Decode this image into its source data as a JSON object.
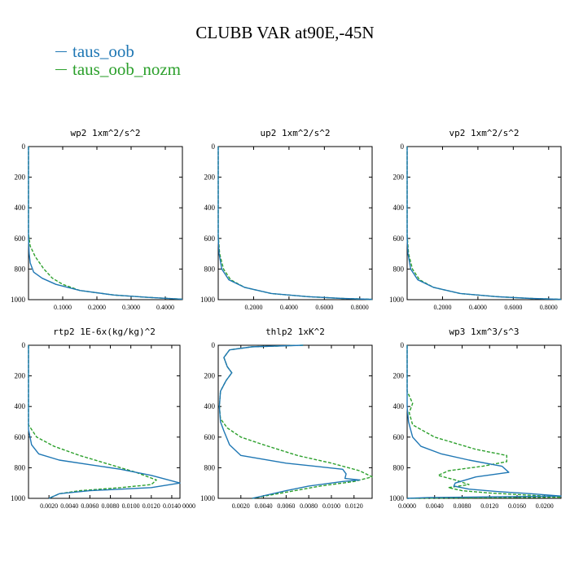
{
  "title": "CLUBB VAR at90E,-45N",
  "legend": [
    {
      "label": "taus_oob",
      "color": "#1f77b4"
    },
    {
      "label": "taus_oob_nozm",
      "color": "#2ca02c"
    }
  ],
  "chart_data": [
    {
      "type": "line",
      "title": "wp2  1xm^2/s^2",
      "xlim": [
        0,
        0.45
      ],
      "ylim": [
        1000,
        0
      ],
      "xticks": [
        0.1,
        0.2,
        0.3,
        0.4
      ],
      "xtick_labels": [
        "0.1000",
        "0.2000",
        "0.3000",
        "0.4000"
      ],
      "yticks": [
        0,
        200,
        400,
        600,
        800,
        1000
      ],
      "series": [
        {
          "name": "taus_oob",
          "x": [
            0.0,
            0.0,
            0.0,
            0.002,
            0.005,
            0.015,
            0.04,
            0.08,
            0.15,
            0.25,
            0.35,
            0.45
          ],
          "y": [
            0,
            400,
            600,
            700,
            760,
            820,
            860,
            900,
            940,
            970,
            985,
            997
          ]
        },
        {
          "name": "taus_oob_nozm",
          "x": [
            0.0,
            0.0,
            0.0,
            0.005,
            0.02,
            0.045,
            0.07,
            0.1,
            0.15,
            0.25,
            0.35,
            0.45
          ],
          "y": [
            0,
            400,
            570,
            650,
            720,
            800,
            860,
            900,
            940,
            970,
            985,
            997
          ]
        }
      ]
    },
    {
      "type": "line",
      "title": "up2  1xm^2/s^2",
      "xlim": [
        0,
        0.87
      ],
      "ylim": [
        1000,
        0
      ],
      "xticks": [
        0.2,
        0.4,
        0.6,
        0.8
      ],
      "xtick_labels": [
        "0.2000",
        "0.4000",
        "0.6000",
        "0.8000"
      ],
      "yticks": [
        0,
        200,
        400,
        600,
        800,
        1000
      ],
      "series": [
        {
          "name": "taus_oob",
          "x": [
            0.0,
            0.0,
            0.0,
            0.005,
            0.02,
            0.06,
            0.15,
            0.3,
            0.5,
            0.7,
            0.87
          ],
          "y": [
            0,
            400,
            600,
            700,
            800,
            870,
            920,
            960,
            980,
            992,
            998
          ]
        },
        {
          "name": "taus_oob_nozm",
          "x": [
            0.0,
            0.0,
            0.0,
            0.008,
            0.03,
            0.07,
            0.15,
            0.3,
            0.5,
            0.7,
            0.87
          ],
          "y": [
            0,
            400,
            580,
            700,
            800,
            870,
            920,
            960,
            980,
            992,
            998
          ]
        }
      ]
    },
    {
      "type": "line",
      "title": "vp2  1xm^2/s^2",
      "xlim": [
        0,
        0.87
      ],
      "ylim": [
        1000,
        0
      ],
      "xticks": [
        0.2,
        0.4,
        0.6,
        0.8
      ],
      "xtick_labels": [
        "0.2000",
        "0.4000",
        "0.6000",
        "0.8000"
      ],
      "yticks": [
        0,
        200,
        400,
        600,
        800,
        1000
      ],
      "series": [
        {
          "name": "taus_oob",
          "x": [
            0.0,
            0.0,
            0.0,
            0.005,
            0.02,
            0.06,
            0.15,
            0.3,
            0.5,
            0.7,
            0.87
          ],
          "y": [
            0,
            400,
            600,
            700,
            800,
            870,
            920,
            960,
            980,
            992,
            998
          ]
        },
        {
          "name": "taus_oob_nozm",
          "x": [
            0.0,
            0.0,
            0.0,
            0.008,
            0.03,
            0.07,
            0.15,
            0.3,
            0.5,
            0.7,
            0.87
          ],
          "y": [
            0,
            400,
            580,
            700,
            800,
            870,
            920,
            960,
            980,
            992,
            998
          ]
        }
      ]
    },
    {
      "type": "line",
      "title": "rtp2  1E-6x(kg/kg)^2",
      "xlim": [
        0,
        0.0148
      ],
      "ylim": [
        1000,
        0
      ],
      "xticks": [
        0.002,
        0.004,
        0.006,
        0.008,
        0.01,
        0.012,
        0.014
      ],
      "xtick_labels": [
        "0.0020",
        "0.0040",
        "0.0060",
        "0.0080",
        "0.0100",
        "0.0120",
        "0.0140"
      ],
      "xtick_label_overflow": "0000",
      "yticks": [
        0,
        200,
        400,
        600,
        800,
        1000
      ],
      "series": [
        {
          "name": "taus_oob",
          "x": [
            0.0,
            0.0,
            0.0,
            0.0003,
            0.001,
            0.003,
            0.006,
            0.009,
            0.012,
            0.0148,
            0.012,
            0.006,
            0.003,
            0.002
          ],
          "y": [
            0,
            400,
            550,
            650,
            710,
            750,
            780,
            810,
            850,
            900,
            930,
            950,
            970,
            1000
          ]
        },
        {
          "name": "taus_oob_nozm",
          "x": [
            0.0,
            0.0,
            0.0,
            0.0008,
            0.0025,
            0.005,
            0.008,
            0.0105,
            0.0125,
            0.012,
            0.009,
            0.005,
            0.003,
            0.002
          ],
          "y": [
            0,
            400,
            520,
            600,
            660,
            720,
            780,
            830,
            880,
            910,
            930,
            950,
            970,
            1000
          ]
        }
      ]
    },
    {
      "type": "line",
      "title": "thlp2  1xK^2",
      "xlim": [
        0,
        0.0136
      ],
      "ylim": [
        1000,
        0
      ],
      "xticks": [
        0.002,
        0.004,
        0.006,
        0.008,
        0.01,
        0.012
      ],
      "xtick_labels": [
        "0.0020",
        "0.0040",
        "0.0060",
        "0.0080",
        "0.0100",
        "0.0120"
      ],
      "yticks": [
        0,
        200,
        400,
        600,
        800,
        1000
      ],
      "series": [
        {
          "name": "taus_oob",
          "x": [
            0.0075,
            0.003,
            0.001,
            0.0005,
            0.0008,
            0.0012,
            0.0007,
            0.0002,
            0.0001,
            0.0002,
            0.0005,
            0.001,
            0.002,
            0.006,
            0.011,
            0.0113,
            0.0112,
            0.0125,
            0.011,
            0.008,
            0.006,
            0.003
          ],
          "y": [
            0,
            10,
            30,
            80,
            140,
            180,
            230,
            300,
            400,
            500,
            560,
            650,
            720,
            770,
            810,
            840,
            870,
            880,
            890,
            920,
            950,
            1000
          ]
        },
        {
          "name": "taus_oob_nozm",
          "x": [
            0.0075,
            0.003,
            0.001,
            0.0005,
            0.0008,
            0.0012,
            0.0007,
            0.0002,
            0.0001,
            0.0002,
            0.0008,
            0.002,
            0.004,
            0.007,
            0.01,
            0.0125,
            0.0136,
            0.012,
            0.009,
            0.006,
            0.003
          ],
          "y": [
            0,
            10,
            30,
            80,
            140,
            180,
            230,
            300,
            400,
            480,
            540,
            600,
            650,
            720,
            770,
            820,
            860,
            890,
            920,
            960,
            1000
          ]
        }
      ]
    },
    {
      "type": "line",
      "title": "wp3  1xm^3/s^3",
      "xlim": [
        0,
        0.0224
      ],
      "ylim": [
        1000,
        0
      ],
      "xticks": [
        0.0,
        0.004,
        0.008,
        0.012,
        0.016,
        0.02
      ],
      "xtick_labels": [
        "0.0000",
        "0.0040",
        "0.0080",
        "0.0120",
        "0.0160",
        "0.0200"
      ],
      "yticks": [
        0,
        200,
        400,
        600,
        800,
        1000
      ],
      "series": [
        {
          "name": "taus_oob",
          "x": [
            0.0,
            0.0,
            0.0002,
            0.0008,
            0.002,
            0.005,
            0.009,
            0.0138,
            0.0148,
            0.01,
            0.007,
            0.0068,
            0.009,
            0.013,
            0.018,
            0.0224,
            0.003,
            0.0
          ],
          "y": [
            0,
            400,
            500,
            600,
            660,
            710,
            750,
            790,
            830,
            860,
            900,
            920,
            940,
            955,
            970,
            985,
            995,
            1000
          ]
        },
        {
          "name": "taus_oob_nozm",
          "x": [
            0.0,
            0.0,
            0.0008,
            0.0003,
            0.0008,
            0.004,
            0.01,
            0.0145,
            0.0145,
            0.011,
            0.006,
            0.0045,
            0.007,
            0.009,
            0.006,
            0.008,
            0.012,
            0.018,
            0.0224,
            0.0
          ],
          "y": [
            0,
            300,
            380,
            440,
            520,
            600,
            680,
            720,
            760,
            790,
            820,
            850,
            880,
            910,
            930,
            950,
            965,
            980,
            992,
            1000
          ]
        }
      ]
    }
  ]
}
